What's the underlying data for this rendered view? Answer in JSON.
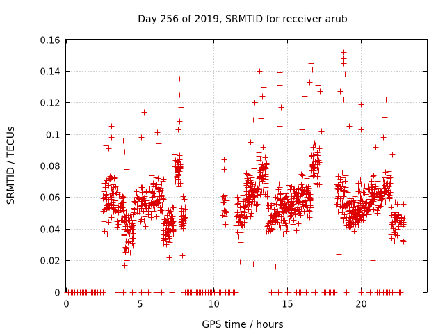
{
  "chart_data": {
    "type": "scatter",
    "title": "Day 256 of 2019, SRMTID for receiver arub",
    "xlabel": "GPS time / hours",
    "ylabel": "SRMTID / TECUs",
    "xlim": [
      0,
      24.5
    ],
    "ylim": [
      0,
      0.16
    ],
    "xticks": [
      0,
      5,
      10,
      15,
      20
    ],
    "xtick_labels": [
      "0",
      "5",
      "10",
      "15",
      "20"
    ],
    "yticks": [
      0,
      0.02,
      0.04,
      0.06,
      0.08,
      0.1,
      0.12,
      0.14,
      0.16
    ],
    "ytick_labels": [
      "0",
      "0.02",
      "0.04",
      "0.06",
      "0.08",
      "0.1",
      "0.12",
      "0.14",
      "0.16"
    ],
    "grid": true,
    "marker": "plus",
    "color": "#dd0000",
    "zero_segments": [
      [
        0.05,
        2.6
      ],
      [
        3.5,
        3.6
      ],
      [
        3.9,
        4.0
      ],
      [
        4.5,
        4.7
      ],
      [
        5.1,
        5.3
      ],
      [
        5.6,
        5.7
      ],
      [
        6.1,
        6.2
      ],
      [
        6.5,
        6.6
      ],
      [
        7.2,
        7.3
      ],
      [
        8.0,
        10.6
      ],
      [
        10.8,
        11.6
      ],
      [
        13.9,
        14.0
      ],
      [
        14.3,
        14.6
      ],
      [
        15.0,
        15.2
      ],
      [
        15.6,
        16.0
      ],
      [
        16.3,
        16.4
      ],
      [
        16.8,
        17.0
      ],
      [
        17.5,
        18.3
      ],
      [
        19.0,
        19.1
      ],
      [
        20.0,
        20.1
      ],
      [
        20.5,
        20.7
      ],
      [
        21.1,
        21.3
      ],
      [
        21.5,
        22.3
      ],
      [
        22.6,
        22.8
      ]
    ],
    "clusters": [
      {
        "x0": 2.5,
        "x1": 3.4,
        "y": 0.06,
        "spread": 0.016,
        "n": 70
      },
      {
        "x0": 3.4,
        "x1": 3.9,
        "y": 0.055,
        "spread": 0.014,
        "n": 30
      },
      {
        "x0": 3.9,
        "x1": 4.6,
        "y": 0.04,
        "spread": 0.014,
        "n": 60
      },
      {
        "x0": 4.6,
        "x1": 5.8,
        "y": 0.055,
        "spread": 0.013,
        "n": 80
      },
      {
        "x0": 5.8,
        "x1": 6.6,
        "y": 0.062,
        "spread": 0.013,
        "n": 60
      },
      {
        "x0": 6.6,
        "x1": 7.3,
        "y": 0.04,
        "spread": 0.013,
        "n": 60
      },
      {
        "x0": 7.3,
        "x1": 7.8,
        "y": 0.078,
        "spread": 0.01,
        "n": 40
      },
      {
        "x0": 7.8,
        "x1": 8.1,
        "y": 0.048,
        "spread": 0.01,
        "n": 25
      },
      {
        "x0": 10.6,
        "x1": 10.9,
        "y": 0.05,
        "spread": 0.015,
        "n": 15
      },
      {
        "x0": 11.5,
        "x1": 12.2,
        "y": 0.05,
        "spread": 0.015,
        "n": 50
      },
      {
        "x0": 12.2,
        "x1": 13.0,
        "y": 0.062,
        "spread": 0.014,
        "n": 70
      },
      {
        "x0": 13.0,
        "x1": 13.6,
        "y": 0.075,
        "spread": 0.015,
        "n": 50
      },
      {
        "x0": 13.6,
        "x1": 14.2,
        "y": 0.048,
        "spread": 0.014,
        "n": 50
      },
      {
        "x0": 14.2,
        "x1": 15.0,
        "y": 0.055,
        "spread": 0.015,
        "n": 70
      },
      {
        "x0": 15.0,
        "x1": 15.9,
        "y": 0.055,
        "spread": 0.014,
        "n": 80
      },
      {
        "x0": 15.9,
        "x1": 16.6,
        "y": 0.06,
        "spread": 0.015,
        "n": 60
      },
      {
        "x0": 16.6,
        "x1": 17.2,
        "y": 0.085,
        "spread": 0.016,
        "n": 40
      },
      {
        "x0": 18.3,
        "x1": 19.0,
        "y": 0.06,
        "spread": 0.017,
        "n": 60
      },
      {
        "x0": 19.0,
        "x1": 19.8,
        "y": 0.05,
        "spread": 0.014,
        "n": 70
      },
      {
        "x0": 19.8,
        "x1": 20.6,
        "y": 0.055,
        "spread": 0.014,
        "n": 70
      },
      {
        "x0": 20.6,
        "x1": 21.4,
        "y": 0.06,
        "spread": 0.014,
        "n": 60
      },
      {
        "x0": 21.4,
        "x1": 22.0,
        "y": 0.065,
        "spread": 0.014,
        "n": 40
      },
      {
        "x0": 22.0,
        "x1": 22.9,
        "y": 0.045,
        "spread": 0.012,
        "n": 50
      }
    ],
    "highlights": [
      {
        "x": 2.7,
        "y": 0.093
      },
      {
        "x": 2.9,
        "y": 0.091
      },
      {
        "x": 3.1,
        "y": 0.098
      },
      {
        "x": 3.1,
        "y": 0.105
      },
      {
        "x": 3.9,
        "y": 0.096
      },
      {
        "x": 4.0,
        "y": 0.089
      },
      {
        "x": 4.1,
        "y": 0.078
      },
      {
        "x": 5.1,
        "y": 0.098
      },
      {
        "x": 5.3,
        "y": 0.114
      },
      {
        "x": 5.5,
        "y": 0.109
      },
      {
        "x": 6.2,
        "y": 0.101
      },
      {
        "x": 6.3,
        "y": 0.094
      },
      {
        "x": 7.6,
        "y": 0.103
      },
      {
        "x": 7.7,
        "y": 0.108
      },
      {
        "x": 7.8,
        "y": 0.117
      },
      {
        "x": 7.7,
        "y": 0.125
      },
      {
        "x": 7.7,
        "y": 0.135
      },
      {
        "x": 10.7,
        "y": 0.084
      },
      {
        "x": 10.7,
        "y": 0.078
      },
      {
        "x": 12.5,
        "y": 0.095
      },
      {
        "x": 12.7,
        "y": 0.109
      },
      {
        "x": 12.8,
        "y": 0.12
      },
      {
        "x": 13.1,
        "y": 0.14
      },
      {
        "x": 13.3,
        "y": 0.124
      },
      {
        "x": 13.4,
        "y": 0.13
      },
      {
        "x": 13.2,
        "y": 0.11
      },
      {
        "x": 14.5,
        "y": 0.139
      },
      {
        "x": 14.5,
        "y": 0.131
      },
      {
        "x": 14.6,
        "y": 0.117
      },
      {
        "x": 14.5,
        "y": 0.105
      },
      {
        "x": 16.0,
        "y": 0.103
      },
      {
        "x": 16.2,
        "y": 0.124
      },
      {
        "x": 16.5,
        "y": 0.133
      },
      {
        "x": 16.6,
        "y": 0.145
      },
      {
        "x": 16.7,
        "y": 0.141
      },
      {
        "x": 16.8,
        "y": 0.118
      },
      {
        "x": 17.1,
        "y": 0.131
      },
      {
        "x": 17.2,
        "y": 0.127
      },
      {
        "x": 17.3,
        "y": 0.102
      },
      {
        "x": 18.6,
        "y": 0.127
      },
      {
        "x": 18.8,
        "y": 0.122
      },
      {
        "x": 18.8,
        "y": 0.152
      },
      {
        "x": 18.8,
        "y": 0.148
      },
      {
        "x": 18.8,
        "y": 0.145
      },
      {
        "x": 18.9,
        "y": 0.138
      },
      {
        "x": 19.2,
        "y": 0.105
      },
      {
        "x": 20.0,
        "y": 0.103
      },
      {
        "x": 20.0,
        "y": 0.119
      },
      {
        "x": 21.0,
        "y": 0.092
      },
      {
        "x": 21.5,
        "y": 0.098
      },
      {
        "x": 21.6,
        "y": 0.111
      },
      {
        "x": 21.7,
        "y": 0.122
      },
      {
        "x": 22.1,
        "y": 0.087
      },
      {
        "x": 4.0,
        "y": 0.017
      },
      {
        "x": 4.1,
        "y": 0.02
      },
      {
        "x": 6.9,
        "y": 0.018
      },
      {
        "x": 7.0,
        "y": 0.022
      },
      {
        "x": 7.9,
        "y": 0.023
      },
      {
        "x": 11.8,
        "y": 0.019
      },
      {
        "x": 12.7,
        "y": 0.018
      },
      {
        "x": 14.2,
        "y": 0.016
      },
      {
        "x": 18.5,
        "y": 0.019
      },
      {
        "x": 18.5,
        "y": 0.024
      },
      {
        "x": 20.8,
        "y": 0.02
      }
    ]
  }
}
